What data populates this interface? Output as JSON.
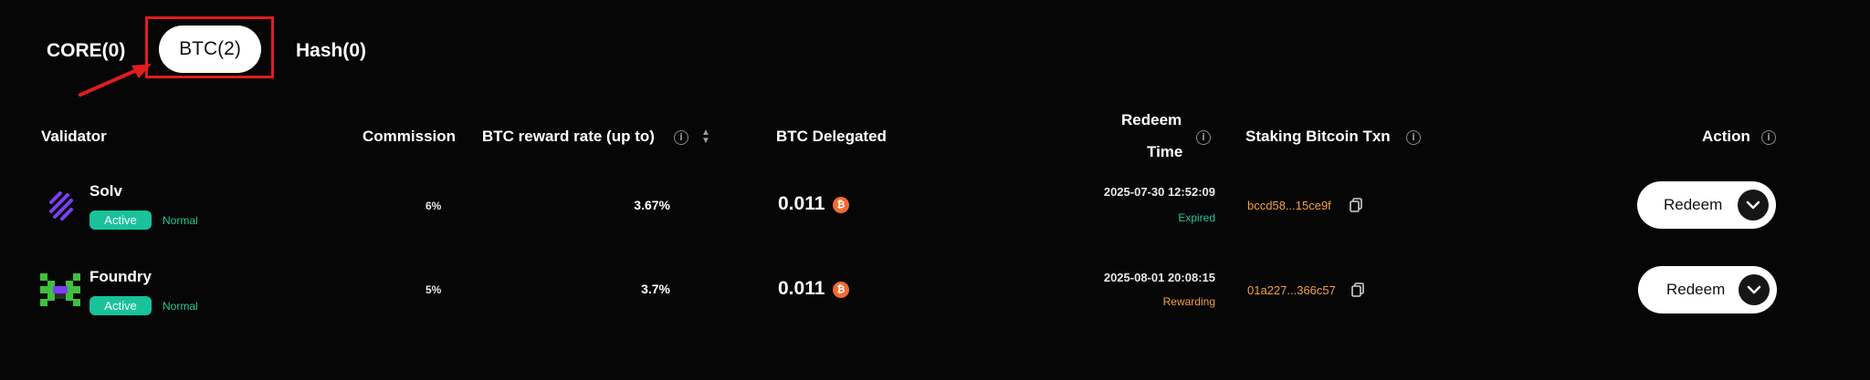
{
  "tabs": [
    {
      "label": "CORE(0)",
      "active": false
    },
    {
      "label": "BTC(2)",
      "active": true
    },
    {
      "label": "Hash(0)",
      "active": false
    }
  ],
  "table": {
    "headers": {
      "validator": "Validator",
      "commission": "Commission",
      "reward_rate": "BTC reward rate (up to)",
      "delegated": "BTC Delegated",
      "redeem_time_line1": "Redeem",
      "redeem_time_line2": "Time",
      "staking_txn": "Staking Bitcoin Txn",
      "action": "Action"
    },
    "rows": [
      {
        "name": "Solv",
        "badge": "Active",
        "status": "Normal",
        "commission": "6%",
        "reward_rate": "3.67%",
        "delegated": "0.011",
        "redeem_time": "2025-07-30 12:52:09",
        "redeem_state": "Expired",
        "txn": "bccd58...15ce9f",
        "action": "Redeem"
      },
      {
        "name": "Foundry",
        "badge": "Active",
        "status": "Normal",
        "commission": "5%",
        "reward_rate": "3.7%",
        "delegated": "0.011",
        "redeem_time": "2025-08-01 20:08:15",
        "redeem_state": "Rewarding",
        "txn": "01a227...366c57",
        "action": "Redeem"
      }
    ]
  },
  "colors": {
    "background": "#060606",
    "accent_green": "#19c29a",
    "expired": "#22c79c",
    "rewarding": "#f2a040",
    "txn": "#f2a040",
    "btc": "#f26b2b",
    "highlight_box": "#e11d1d"
  },
  "icons": {
    "info": "info-circle-icon",
    "sort": "sort-icon",
    "btc": "bitcoin-icon",
    "copy": "copy-icon",
    "dropdown": "chevron-down-icon",
    "arrow": "annotation-arrow-icon"
  }
}
